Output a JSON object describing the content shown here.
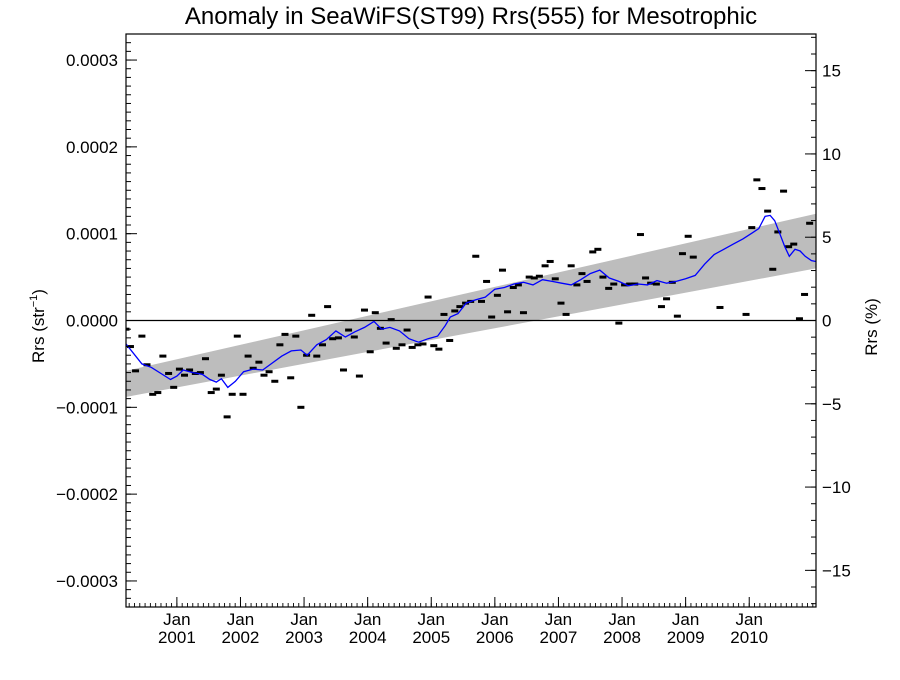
{
  "chart_data": {
    "type": "scatter",
    "title": "Anomaly in SeaWiFS(ST99) Rrs(555) for Mesotrophic",
    "ylabel_left": {
      "base": "Rrs (str",
      "sup": "−1",
      "close": ")"
    },
    "ylabel_right": "Rrs (%)",
    "xlim": [
      2000.2,
      2011.05
    ],
    "ylim": [
      -0.00033,
      0.00033
    ],
    "ylim_right": [
      -17.2,
      17.2
    ],
    "y_ticks_left": [
      {
        "value": 0.0003,
        "label": "0.0003"
      },
      {
        "value": 0.0002,
        "label": "0.0002"
      },
      {
        "value": 0.0001,
        "label": "0.0001"
      },
      {
        "value": 0.0,
        "label": "0.0000"
      },
      {
        "value": -0.0001,
        "label": "−0.0001"
      },
      {
        "value": -0.0002,
        "label": "−0.0002"
      },
      {
        "value": -0.0003,
        "label": "−0.0003"
      }
    ],
    "y_ticks_right": [
      {
        "value": 15,
        "label": "15"
      },
      {
        "value": 10,
        "label": "10"
      },
      {
        "value": 5,
        "label": "5"
      },
      {
        "value": 0,
        "label": "0"
      },
      {
        "value": -5,
        "label": "−5"
      },
      {
        "value": -10,
        "label": "−10"
      },
      {
        "value": -15,
        "label": "−15"
      }
    ],
    "x_ticks": [
      {
        "value": 2001.0,
        "month": "Jan",
        "year": "2001"
      },
      {
        "value": 2002.0,
        "month": "Jan",
        "year": "2002"
      },
      {
        "value": 2003.0,
        "month": "Jan",
        "year": "2003"
      },
      {
        "value": 2004.0,
        "month": "Jan",
        "year": "2004"
      },
      {
        "value": 2005.0,
        "month": "Jan",
        "year": "2005"
      },
      {
        "value": 2006.0,
        "month": "Jan",
        "year": "2006"
      },
      {
        "value": 2007.0,
        "month": "Jan",
        "year": "2007"
      },
      {
        "value": 2008.0,
        "month": "Jan",
        "year": "2008"
      },
      {
        "value": 2009.0,
        "month": "Jan",
        "year": "2009"
      },
      {
        "value": 2010.0,
        "month": "Jan",
        "year": "2010"
      }
    ],
    "zero_line": 0,
    "trend_band": {
      "start": [
        2000.2,
        -8.8e-05,
        -5.8e-05
      ],
      "end": [
        2011.05,
        6e-05,
        0.000123
      ]
    },
    "series": [
      {
        "type": "points",
        "color": "#000000",
        "points": [
          [
            2000.2,
            -1e-05
          ],
          [
            2000.27,
            -3e-05
          ],
          [
            2000.35,
            -5.8e-05
          ],
          [
            2000.45,
            -1.8e-05
          ],
          [
            2000.53,
            -5.1e-05
          ],
          [
            2000.62,
            -8.5e-05
          ],
          [
            2000.7,
            -8.3e-05
          ],
          [
            2000.78,
            -4.1e-05
          ],
          [
            2000.87,
            -6.1e-05
          ],
          [
            2000.95,
            -7.7e-05
          ],
          [
            2001.04,
            -5.6e-05
          ],
          [
            2001.12,
            -6.3e-05
          ],
          [
            2001.2,
            -5.7e-05
          ],
          [
            2001.29,
            -6.1e-05
          ],
          [
            2001.37,
            -6e-05
          ],
          [
            2001.45,
            -4.4e-05
          ],
          [
            2001.54,
            -8.3e-05
          ],
          [
            2001.62,
            -7.9e-05
          ],
          [
            2001.7,
            -6.3e-05
          ],
          [
            2001.79,
            -0.000111
          ],
          [
            2001.87,
            -8.5e-05
          ],
          [
            2001.95,
            -1.8e-05
          ],
          [
            2002.04,
            -8.5e-05
          ],
          [
            2002.12,
            -4.1e-05
          ],
          [
            2002.2,
            -5.5e-05
          ],
          [
            2002.29,
            -4.8e-05
          ],
          [
            2002.37,
            -6.3e-05
          ],
          [
            2002.45,
            -5.9e-05
          ],
          [
            2002.54,
            -7e-05
          ],
          [
            2002.62,
            -2.8e-05
          ],
          [
            2002.7,
            -1.6e-05
          ],
          [
            2002.79,
            -6.6e-05
          ],
          [
            2002.87,
            -1.8e-05
          ],
          [
            2002.95,
            -0.0001
          ],
          [
            2003.04,
            -4e-05
          ],
          [
            2003.12,
            6e-06
          ],
          [
            2003.2,
            -4.1e-05
          ],
          [
            2003.29,
            -2.8e-05
          ],
          [
            2003.37,
            1.6e-05
          ],
          [
            2003.45,
            -2.1e-05
          ],
          [
            2003.54,
            -2e-05
          ],
          [
            2003.62,
            -5.7e-05
          ],
          [
            2003.7,
            -1.1e-05
          ],
          [
            2003.79,
            -1.9e-05
          ],
          [
            2003.87,
            -6.4e-05
          ],
          [
            2003.95,
            1.2e-05
          ],
          [
            2004.04,
            -3.6e-05
          ],
          [
            2004.12,
            9e-06
          ],
          [
            2004.2,
            -9e-06
          ],
          [
            2004.29,
            -2.6e-05
          ],
          [
            2004.37,
            1e-06
          ],
          [
            2004.45,
            -3.2e-05
          ],
          [
            2004.54,
            -2.8e-05
          ],
          [
            2004.62,
            -1.1e-05
          ],
          [
            2004.7,
            -3.1e-05
          ],
          [
            2004.79,
            -2.8e-05
          ],
          [
            2004.87,
            -2.7e-05
          ],
          [
            2004.95,
            2.7e-05
          ],
          [
            2005.04,
            -2.9e-05
          ],
          [
            2005.12,
            -3.3e-05
          ],
          [
            2005.2,
            7e-06
          ],
          [
            2005.29,
            -2.3e-05
          ],
          [
            2005.37,
            1.1e-05
          ],
          [
            2005.45,
            1.6e-05
          ],
          [
            2005.54,
            2e-05
          ],
          [
            2005.62,
            2.2e-05
          ],
          [
            2005.7,
            7.4e-05
          ],
          [
            2005.79,
            2.2e-05
          ],
          [
            2005.87,
            4.5e-05
          ],
          [
            2005.95,
            4e-06
          ],
          [
            2006.04,
            2.9e-05
          ],
          [
            2006.12,
            5.8e-05
          ],
          [
            2006.2,
            1e-05
          ],
          [
            2006.29,
            3.8e-05
          ],
          [
            2006.37,
            4.1e-05
          ],
          [
            2006.45,
            9e-06
          ],
          [
            2006.54,
            5e-05
          ],
          [
            2006.62,
            4.9e-05
          ],
          [
            2006.7,
            5.1e-05
          ],
          [
            2006.79,
            6.3e-05
          ],
          [
            2006.87,
            6.8e-05
          ],
          [
            2006.95,
            4.8e-05
          ],
          [
            2007.04,
            2e-05
          ],
          [
            2007.12,
            7e-06
          ],
          [
            2007.2,
            6.3e-05
          ],
          [
            2007.29,
            4.1e-05
          ],
          [
            2007.37,
            5.4e-05
          ],
          [
            2007.45,
            4.5e-05
          ],
          [
            2007.54,
            7.9e-05
          ],
          [
            2007.62,
            8.2e-05
          ],
          [
            2007.7,
            5e-05
          ],
          [
            2007.79,
            3.7e-05
          ],
          [
            2007.87,
            4.2e-05
          ],
          [
            2007.95,
            -3e-06
          ],
          [
            2008.04,
            4.1e-05
          ],
          [
            2008.12,
            4.2e-05
          ],
          [
            2008.2,
            4.2e-05
          ],
          [
            2008.29,
            9.9e-05
          ],
          [
            2008.37,
            4.9e-05
          ],
          [
            2008.45,
            4.3e-05
          ],
          [
            2008.54,
            4.2e-05
          ],
          [
            2008.62,
            1.6e-05
          ],
          [
            2008.7,
            2.5e-05
          ],
          [
            2008.79,
            4.4e-05
          ],
          [
            2008.87,
            5e-06
          ],
          [
            2008.95,
            7.7e-05
          ],
          [
            2009.04,
            9.7e-05
          ],
          [
            2009.12,
            7.3e-05
          ],
          [
            2009.54,
            1.5e-05
          ],
          [
            2009.95,
            7e-06
          ],
          [
            2010.04,
            0.000107
          ],
          [
            2010.12,
            0.000162
          ],
          [
            2010.2,
            0.000152
          ],
          [
            2010.29,
            0.000126
          ],
          [
            2010.37,
            5.9e-05
          ],
          [
            2010.45,
            0.000102
          ],
          [
            2010.54,
            0.000149
          ],
          [
            2010.62,
            8.5e-05
          ],
          [
            2010.7,
            8.8e-05
          ],
          [
            2010.79,
            2e-06
          ],
          [
            2010.87,
            3e-05
          ],
          [
            2010.95,
            0.000112
          ]
        ]
      },
      {
        "type": "line",
        "color": "#0000ff",
        "points": [
          [
            2000.2,
            -2.7e-05
          ],
          [
            2000.45,
            -5e-05
          ],
          [
            2000.6,
            -5.4e-05
          ],
          [
            2000.75,
            -6.1e-05
          ],
          [
            2000.9,
            -6.8e-05
          ],
          [
            2001.0,
            -6.4e-05
          ],
          [
            2001.1,
            -5.7e-05
          ],
          [
            2001.25,
            -6e-05
          ],
          [
            2001.4,
            -6.2e-05
          ],
          [
            2001.52,
            -6.8e-05
          ],
          [
            2001.62,
            -7.1e-05
          ],
          [
            2001.7,
            -6.7e-05
          ],
          [
            2001.8,
            -7.7e-05
          ],
          [
            2001.92,
            -7e-05
          ],
          [
            2002.05,
            -5.9e-05
          ],
          [
            2002.2,
            -5.6e-05
          ],
          [
            2002.35,
            -5.7e-05
          ],
          [
            2002.5,
            -4.9e-05
          ],
          [
            2002.65,
            -4.1e-05
          ],
          [
            2002.8,
            -3.5e-05
          ],
          [
            2002.95,
            -3.4e-05
          ],
          [
            2003.05,
            -4e-05
          ],
          [
            2003.2,
            -2.8e-05
          ],
          [
            2003.35,
            -2.2e-05
          ],
          [
            2003.5,
            -1.2e-05
          ],
          [
            2003.65,
            -1.9e-05
          ],
          [
            2003.8,
            -1.3e-05
          ],
          [
            2003.95,
            -8e-06
          ],
          [
            2004.1,
            -1e-06
          ],
          [
            2004.22,
            -1e-05
          ],
          [
            2004.35,
            -8e-06
          ],
          [
            2004.5,
            -1.2e-05
          ],
          [
            2004.65,
            -2.1e-05
          ],
          [
            2004.8,
            -2.5e-05
          ],
          [
            2004.95,
            -2.1e-05
          ],
          [
            2005.1,
            -1.8e-05
          ],
          [
            2005.22,
            -6e-06
          ],
          [
            2005.3,
            4e-06
          ],
          [
            2005.42,
            8e-06
          ],
          [
            2005.55,
            2e-05
          ],
          [
            2005.7,
            2.4e-05
          ],
          [
            2005.85,
            2.7e-05
          ],
          [
            2006.0,
            3.6e-05
          ],
          [
            2006.15,
            3.8e-05
          ],
          [
            2006.3,
            4.2e-05
          ],
          [
            2006.45,
            4.4e-05
          ],
          [
            2006.6,
            4.1e-05
          ],
          [
            2006.75,
            4.7e-05
          ],
          [
            2006.9,
            4.5e-05
          ],
          [
            2007.05,
            4.3e-05
          ],
          [
            2007.2,
            4.1e-05
          ],
          [
            2007.35,
            4.7e-05
          ],
          [
            2007.5,
            5.4e-05
          ],
          [
            2007.65,
            5.8e-05
          ],
          [
            2007.8,
            4.9e-05
          ],
          [
            2007.95,
            4.5e-05
          ],
          [
            2008.1,
            4e-05
          ],
          [
            2008.25,
            4.2e-05
          ],
          [
            2008.4,
            4.1e-05
          ],
          [
            2008.55,
            4.6e-05
          ],
          [
            2008.7,
            4.3e-05
          ],
          [
            2008.85,
            4.5e-05
          ],
          [
            2009.0,
            4.8e-05
          ],
          [
            2009.15,
            5.2e-05
          ],
          [
            2009.3,
            6.5e-05
          ],
          [
            2009.45,
            7.6e-05
          ],
          [
            2009.6,
            8.2e-05
          ],
          [
            2009.75,
            8.8e-05
          ],
          [
            2009.9,
            9.4e-05
          ],
          [
            2010.05,
            0.000101
          ],
          [
            2010.15,
            0.000106
          ],
          [
            2010.25,
            0.00012
          ],
          [
            2010.33,
            0.000121
          ],
          [
            2010.4,
            0.000115
          ],
          [
            2010.48,
            0.0001
          ],
          [
            2010.56,
            8.5e-05
          ],
          [
            2010.63,
            7.4e-05
          ],
          [
            2010.72,
            8.2e-05
          ],
          [
            2010.8,
            8e-05
          ],
          [
            2010.88,
            7.4e-05
          ],
          [
            2010.98,
            6.9e-05
          ],
          [
            2011.05,
            6.8e-05
          ]
        ]
      }
    ]
  }
}
